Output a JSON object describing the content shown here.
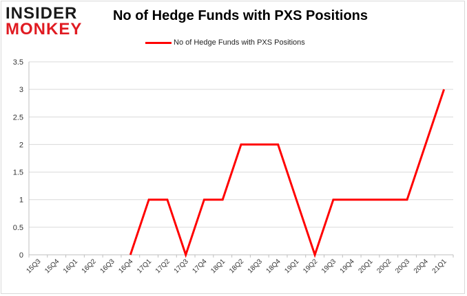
{
  "logo": {
    "line1": "INSIDER",
    "line2": "MONKEY"
  },
  "chart_data": {
    "type": "line",
    "title": "No of Hedge Funds with PXS Positions",
    "xlabel": "",
    "ylabel": "",
    "categories": [
      "15Q3",
      "15Q4",
      "16Q1",
      "16Q2",
      "16Q3",
      "16Q4",
      "17Q1",
      "17Q2",
      "17Q3",
      "17Q4",
      "18Q1",
      "18Q2",
      "18Q3",
      "18Q4",
      "19Q1",
      "19Q2",
      "19Q3",
      "19Q4",
      "20Q1",
      "20Q2",
      "20Q3",
      "20Q4",
      "21Q1"
    ],
    "series": [
      {
        "name": "No of Hedge Funds with PXS Positions",
        "color": "#ff0000",
        "values": [
          null,
          null,
          null,
          null,
          null,
          0,
          1,
          1,
          0,
          1,
          1,
          2,
          2,
          2,
          1,
          0,
          1,
          1,
          1,
          1,
          1,
          2,
          3
        ]
      }
    ],
    "ylim": [
      0,
      3.5
    ],
    "yticks": [
      "0",
      "0.5",
      "1",
      "1.5",
      "2",
      "2.5",
      "3",
      "3.5"
    ],
    "grid": true,
    "legend": "top"
  }
}
